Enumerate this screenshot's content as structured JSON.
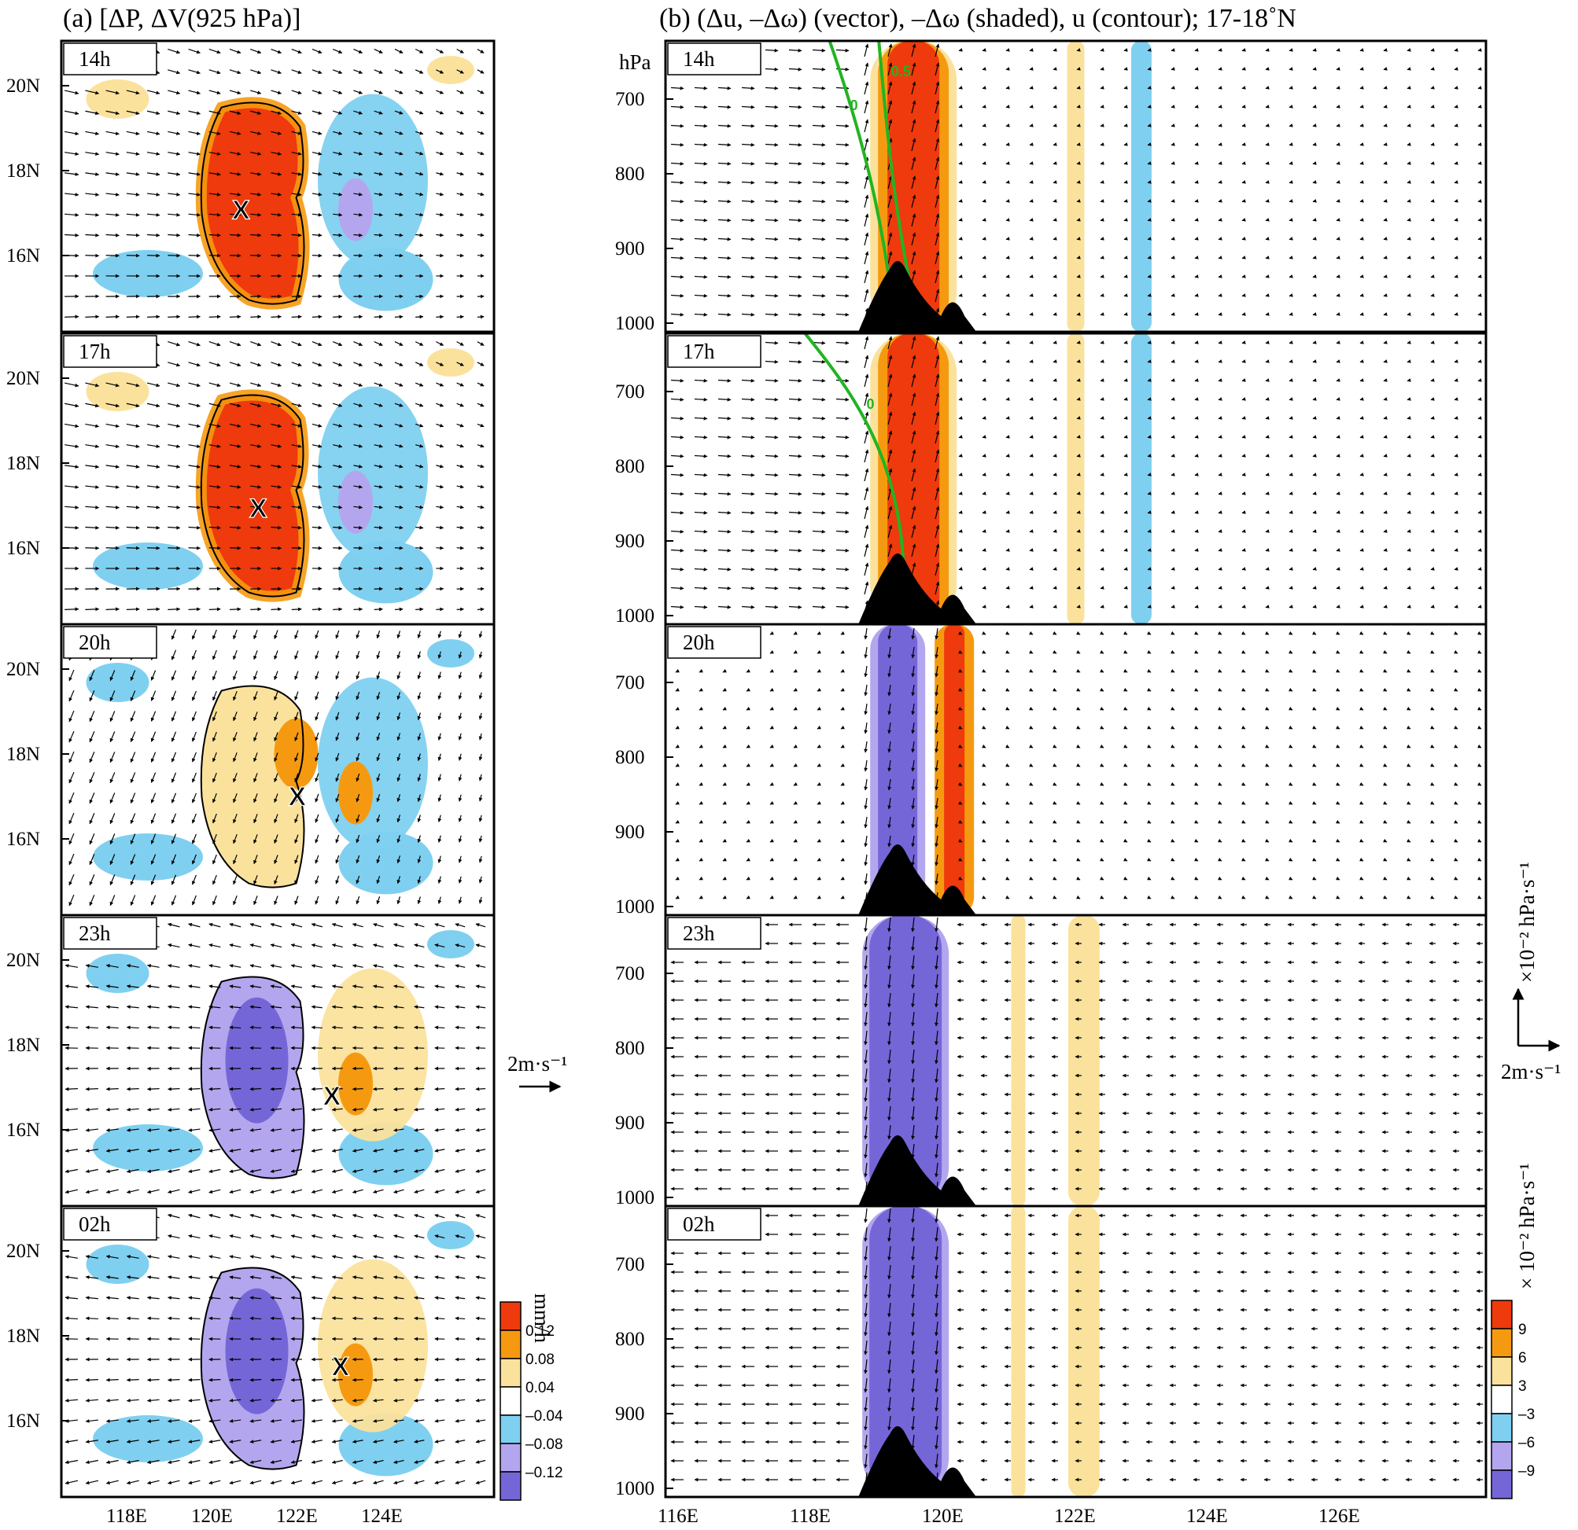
{
  "titles": {
    "a": "(a) [ΔP, ΔV(925 hPa)]",
    "b": "(b) (Δu, –Δω) (vector), –Δω (shaded), u (contour); 17-18˚N"
  },
  "panels": [
    {
      "time": "14h",
      "a_fill": "red",
      "b_fill": "red"
    },
    {
      "time": "17h",
      "a_fill": "red",
      "b_fill": "red"
    },
    {
      "time": "20h",
      "a_fill": "orange",
      "b_fill": "mixed"
    },
    {
      "time": "23h",
      "a_fill": "purple",
      "b_fill": "purple"
    },
    {
      "time": "02h",
      "a_fill": "purple",
      "b_fill": "purple"
    }
  ],
  "markers": [
    "X",
    "X",
    "X",
    "X",
    "X"
  ],
  "axes": {
    "a_lat_ticks": [
      "20N",
      "18N",
      "16N"
    ],
    "a_lon_ticks": [
      "118E",
      "120E",
      "122E",
      "124E"
    ],
    "b_lon_ticks": [
      "116E",
      "118E",
      "120E",
      "122E",
      "124E",
      "126E"
    ],
    "b_pres_ticks": [
      "700",
      "800",
      "900",
      "1000"
    ],
    "b_pres_unit": "hPa"
  },
  "contours": {
    "zero": "0",
    "half": "0.5"
  },
  "colorbar_a": {
    "unit": "mm/h",
    "labels": [
      "0.12",
      "0.08",
      "0.04",
      "–0.04",
      "–0.08",
      "–0.12"
    ],
    "colors": [
      "#ee3a0c",
      "#f59a10",
      "#fbe29c",
      "#ffffff",
      "#7fd0f0",
      "#b4a6ee",
      "#7566d8"
    ]
  },
  "colorbar_b": {
    "unit": "× 10⁻² hPa·s⁻¹",
    "labels": [
      "9",
      "6",
      "3",
      "–3",
      "–6",
      "–9"
    ],
    "colors": [
      "#ee3a0c",
      "#f59a10",
      "#fbe29c",
      "#ffffff",
      "#7fd0f0",
      "#b4a6ee",
      "#7566d8"
    ]
  },
  "legend": {
    "a_ref": "2m·s⁻¹",
    "b_ref_h": "2m·s⁻¹",
    "b_ref_v": "×10⁻² hPa·s⁻¹"
  }
}
